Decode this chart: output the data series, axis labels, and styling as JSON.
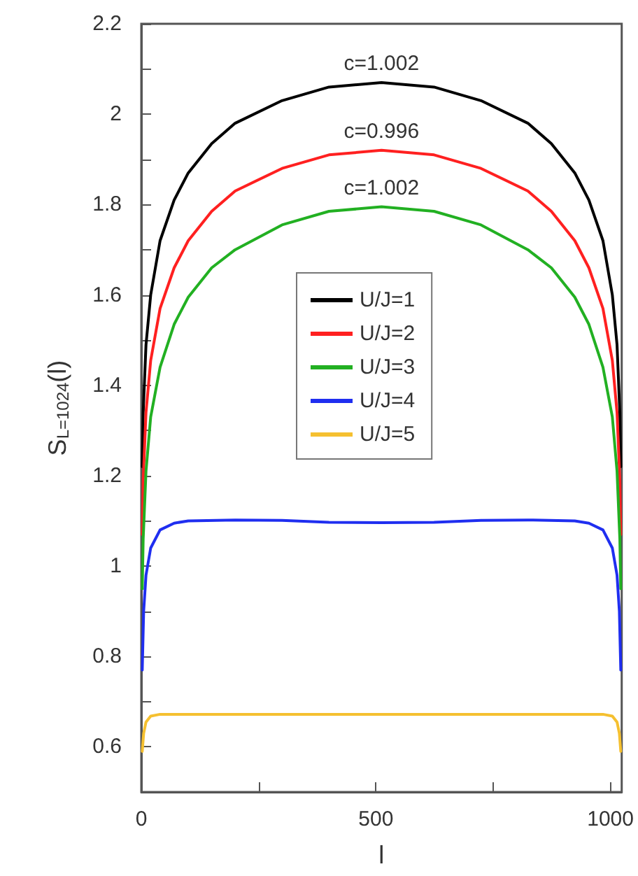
{
  "chart_data": {
    "type": "line",
    "xlabel": "l",
    "ylabel": "S$_{L=1024}$(l)",
    "xlim": [
      0,
      1024
    ],
    "ylim": [
      0.5,
      2.2
    ],
    "xticks": [
      0,
      {
        "value": 250,
        "label": null
      },
      500,
      {
        "value": 750,
        "label": null
      },
      1000
    ],
    "yticks": [
      {
        "value": 0.5,
        "label": null
      },
      0.6,
      {
        "value": 0.7,
        "label": null
      },
      0.8,
      {
        "value": 0.9,
        "label": null
      },
      1,
      {
        "value": 1.1,
        "label": null
      },
      1.2,
      {
        "value": 1.3,
        "label": null
      },
      1.4,
      {
        "value": 1.5,
        "label": null
      },
      1.6,
      {
        "value": 1.7,
        "label": null
      },
      1.8,
      {
        "value": 1.9,
        "label": null
      },
      2,
      {
        "value": 2.1,
        "label": null
      },
      2.2
    ],
    "grid": false,
    "legend": "center",
    "marker": "none",
    "line_style": "solid",
    "annotations": [
      "c=1.002",
      "c=0.996",
      "c=1.002"
    ],
    "series": [
      {
        "name": "U/J=1",
        "color": "#000000",
        "x": [
          2,
          4,
          10,
          20,
          40,
          70,
          100,
          150,
          200,
          300,
          400,
          512,
          624,
          724,
          824,
          874,
          924,
          954,
          984,
          1004,
          1014,
          1020,
          1022
        ],
        "values": [
          1.22,
          1.34,
          1.49,
          1.6,
          1.72,
          1.81,
          1.87,
          1.935,
          1.98,
          2.03,
          2.06,
          2.07,
          2.06,
          2.03,
          1.98,
          1.935,
          1.87,
          1.81,
          1.72,
          1.6,
          1.49,
          1.34,
          1.22
        ]
      },
      {
        "name": "U/J=2",
        "color": "#ff2020",
        "x": [
          2,
          4,
          10,
          20,
          40,
          70,
          100,
          150,
          200,
          300,
          400,
          512,
          624,
          724,
          824,
          874,
          924,
          954,
          984,
          1004,
          1014,
          1020,
          1022
        ],
        "values": [
          1.07,
          1.19,
          1.34,
          1.455,
          1.57,
          1.66,
          1.72,
          1.785,
          1.83,
          1.88,
          1.91,
          1.92,
          1.91,
          1.88,
          1.83,
          1.785,
          1.72,
          1.66,
          1.57,
          1.455,
          1.34,
          1.19,
          1.07
        ]
      },
      {
        "name": "U/J=3",
        "color": "#22b022",
        "x": [
          2,
          4,
          10,
          20,
          40,
          70,
          100,
          150,
          200,
          300,
          400,
          512,
          624,
          724,
          824,
          874,
          924,
          954,
          984,
          1004,
          1014,
          1020,
          1022
        ],
        "values": [
          0.95,
          1.06,
          1.21,
          1.33,
          1.44,
          1.535,
          1.595,
          1.66,
          1.7,
          1.755,
          1.785,
          1.795,
          1.785,
          1.755,
          1.7,
          1.66,
          1.595,
          1.535,
          1.44,
          1.33,
          1.21,
          1.06,
          0.95
        ]
      },
      {
        "name": "U/J=4",
        "color": "#1f2ef0",
        "x": [
          2,
          5,
          10,
          20,
          40,
          70,
          100,
          200,
          300,
          400,
          512,
          624,
          724,
          824,
          924,
          954,
          984,
          1004,
          1014,
          1019,
          1022
        ],
        "values": [
          0.77,
          0.9,
          0.98,
          1.04,
          1.08,
          1.095,
          1.1,
          1.102,
          1.101,
          1.097,
          1.096,
          1.097,
          1.101,
          1.102,
          1.1,
          1.095,
          1.08,
          1.04,
          0.98,
          0.9,
          0.77
        ]
      },
      {
        "name": "U/J=5",
        "color": "#f5c030",
        "x": [
          2,
          5,
          10,
          20,
          40,
          100,
          512,
          924,
          984,
          1004,
          1014,
          1019,
          1022
        ],
        "values": [
          0.59,
          0.63,
          0.655,
          0.668,
          0.672,
          0.672,
          0.672,
          0.672,
          0.672,
          0.668,
          0.655,
          0.63,
          0.59
        ]
      }
    ]
  }
}
